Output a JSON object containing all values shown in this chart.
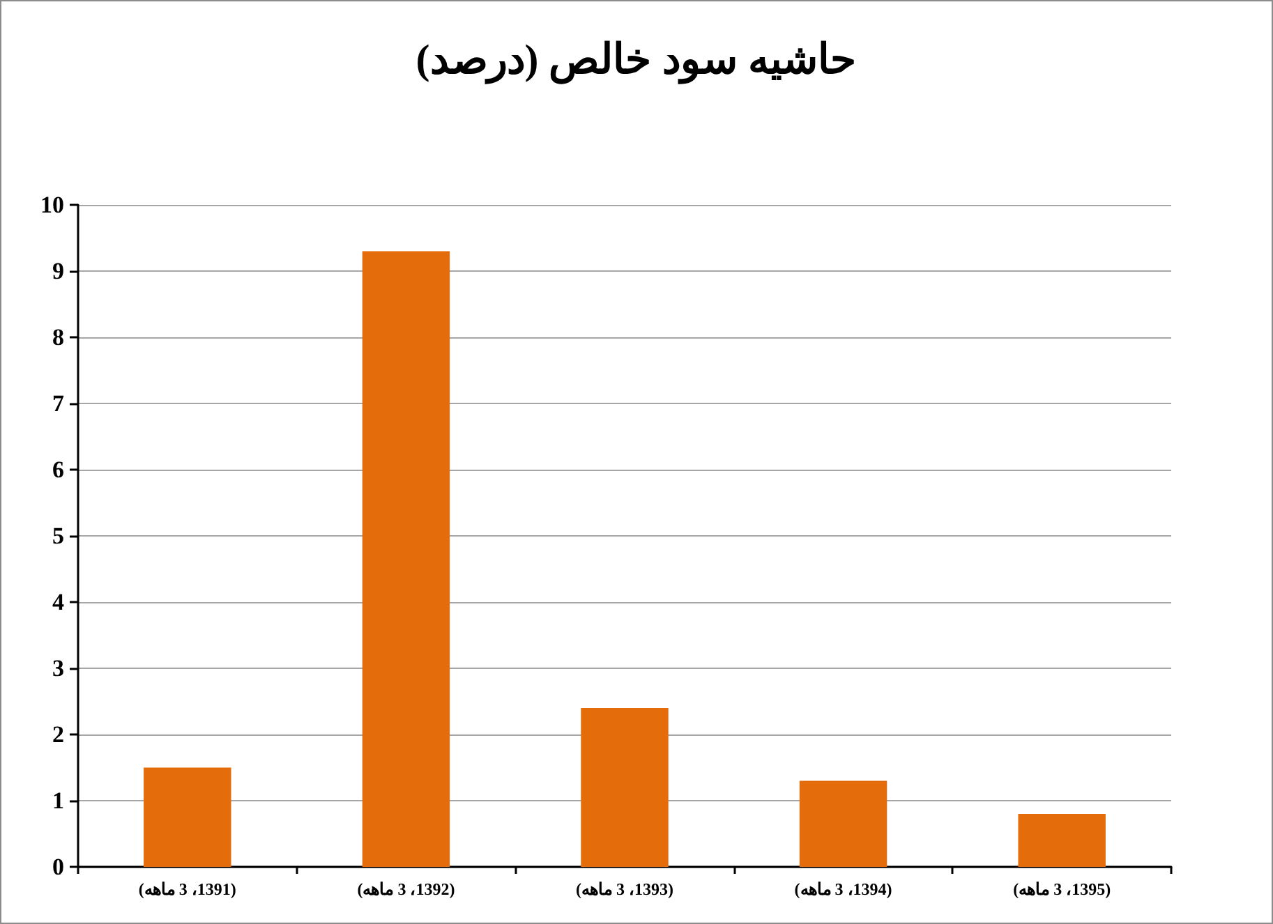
{
  "chart_data": {
    "type": "bar",
    "title": "حاشیه سود خالص (درصد)",
    "categories": [
      "(1391، 3 ماهه)",
      "(1392، 3 ماهه)",
      "(1393، 3 ماهه)",
      "(1394، 3 ماهه)",
      "(1395، 3 ماهه)"
    ],
    "values": [
      1.5,
      9.3,
      2.4,
      1.3,
      0.8
    ],
    "color": "#e46c0a",
    "ylim": [
      0,
      10
    ],
    "yticks": [
      0,
      1,
      2,
      3,
      4,
      5,
      6,
      7,
      8,
      9,
      10
    ],
    "grid": "y"
  }
}
